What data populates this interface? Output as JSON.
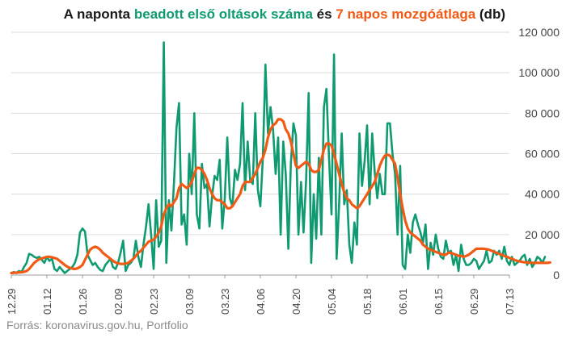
{
  "title": {
    "part1": "A naponta ",
    "part2": "beadott első oltások száma",
    "part3": " és ",
    "part4": "7 napos mozgóátlaga",
    "part5": " (db)"
  },
  "source": "Forrás: koronavirus.gov.hu, Portfolio",
  "colors": {
    "daily": "#0f9a72",
    "avg": "#f05a14",
    "grid": "#dcdcdc",
    "axis": "#999999"
  },
  "chart_data": {
    "type": "line",
    "x_dates_start": "2020-12-29",
    "x_tick_labels": [
      "12.29",
      "01.12",
      "01.26",
      "02.09",
      "02.23",
      "03.09",
      "03.23",
      "04.06",
      "04.20",
      "05.04",
      "05.18",
      "06.01",
      "06.15",
      "06.29",
      "07.13"
    ],
    "y_tick_labels": [
      "0",
      "20 000",
      "40 000",
      "60 000",
      "80 000",
      "100 000",
      "120 000"
    ],
    "ylim": [
      0,
      120000
    ],
    "grid": true,
    "series": [
      {
        "name": "beadott első oltások száma",
        "values": [
          1000,
          1500,
          1000,
          2000,
          1500,
          4000,
          6000,
          10500,
          10000,
          9000,
          8500,
          9000,
          7500,
          6000,
          9000,
          7000,
          8000,
          3000,
          2000,
          4000,
          2500,
          1000,
          2000,
          3000,
          4000,
          6000,
          10000,
          21000,
          23000,
          21500,
          10000,
          7500,
          5000,
          6000,
          4000,
          2500,
          2000,
          5000,
          6500,
          8000,
          4000,
          3000,
          6000,
          11000,
          17000,
          2000,
          5000,
          6000,
          8000,
          17000,
          9000,
          4000,
          15000,
          24000,
          35000,
          20000,
          3000,
          37000,
          14000,
          17000,
          115000,
          6000,
          37000,
          22000,
          45000,
          73000,
          85000,
          25000,
          30000,
          15000,
          60000,
          40000,
          80000,
          30000,
          23000,
          55000,
          43000,
          45000,
          24000,
          39000,
          49000,
          47000,
          57000,
          23000,
          38000,
          68000,
          38000,
          34000,
          52000,
          47000,
          55000,
          85000,
          42000,
          66000,
          47000,
          45000,
          80000,
          42000,
          34000,
          58000,
          104000,
          70000,
          83000,
          72000,
          50000,
          68000,
          20000,
          66000,
          50000,
          13000,
          55000,
          75000,
          69000,
          20000,
          46000,
          21000,
          47000,
          90000,
          6000,
          40000,
          18000,
          58000,
          20000,
          83000,
          92000,
          58000,
          30000,
          109000,
          8000,
          35000,
          70000,
          35000,
          42000,
          15000,
          6000,
          26000,
          15000,
          70000,
          44000,
          56000,
          74000,
          35000,
          70000,
          51000,
          38000,
          50000,
          40000,
          40000,
          75000,
          75000,
          60000,
          50000,
          20000,
          54000,
          5000,
          3000,
          20000,
          11000,
          26000,
          30000,
          25000,
          21000,
          16000,
          25000,
          3000,
          16000,
          10000,
          20000,
          13000,
          9000,
          8000,
          17000,
          11000,
          12000,
          5000,
          10000,
          2000,
          15000,
          8000,
          5000,
          5000,
          6000,
          8000,
          7000,
          3000,
          5000,
          7000,
          12000,
          6000,
          7000,
          12000,
          10000,
          12000,
          8000,
          14000,
          7000,
          5000,
          9000,
          5000,
          6000,
          7000,
          9000,
          10000,
          5000,
          8000,
          4000,
          6000,
          9000,
          8000,
          6000,
          9000
        ]
      },
      {
        "name": "7 napos mozgóátlaga",
        "values": [
          1000,
          1100,
          1200,
          1300,
          1400,
          1600,
          2000,
          3000,
          4500,
          6000,
          7000,
          7800,
          8200,
          8600,
          9000,
          9000,
          8800,
          8400,
          8000,
          7000,
          6000,
          5000,
          4200,
          3500,
          3200,
          3000,
          3300,
          4000,
          5000,
          7500,
          10000,
          12500,
          13500,
          14000,
          13500,
          12500,
          11000,
          10000,
          9000,
          8000,
          7000,
          6200,
          5800,
          5500,
          5500,
          5700,
          6000,
          7000,
          8000,
          9500,
          11000,
          12000,
          13500,
          15000,
          16500,
          17000,
          17500,
          19000,
          21000,
          24000,
          30000,
          33000,
          35000,
          34000,
          36000,
          38000,
          43000,
          45000,
          44000,
          43000,
          44000,
          46000,
          50000,
          53000,
          53000,
          52000,
          50000,
          47000,
          43000,
          40000,
          38000,
          37000,
          37000,
          36000,
          35000,
          33000,
          33000,
          34000,
          36000,
          38000,
          40000,
          44000,
          46000,
          46000,
          46000,
          48000,
          50000,
          53000,
          56000,
          58000,
          62000,
          68000,
          72000,
          74000,
          75000,
          77000,
          77000,
          76000,
          72000,
          70000,
          66000,
          60000,
          54000,
          53000,
          54000,
          55000,
          56000,
          55000,
          52000,
          51000,
          51000,
          52000,
          57000,
          62000,
          65000,
          65000,
          64000,
          60000,
          55000,
          50000,
          45000,
          41000,
          38000,
          37000,
          35000,
          34000,
          33000,
          34000,
          36000,
          38000,
          40000,
          42000,
          44000,
          46000,
          50000,
          54000,
          57000,
          59000,
          59500,
          59000,
          57000,
          55000,
          48000,
          40000,
          33000,
          27000,
          23000,
          21000,
          20000,
          19000,
          18000,
          17000,
          15000,
          14000,
          13000,
          12500,
          12000,
          11500,
          11000,
          10500,
          10000,
          10000,
          11000,
          11000,
          10500,
          10000,
          9500,
          9500,
          9000,
          9500,
          10000,
          11000,
          12000,
          13000,
          13000,
          13000,
          13000,
          12800,
          12500,
          12000,
          11500,
          11000,
          10500,
          10000,
          9500,
          9000,
          8500,
          8000,
          7500,
          7000,
          6800,
          6500,
          6300,
          6200,
          6100,
          6000,
          6000,
          6000,
          6000,
          6000,
          6000,
          6000,
          6200
        ]
      }
    ]
  }
}
